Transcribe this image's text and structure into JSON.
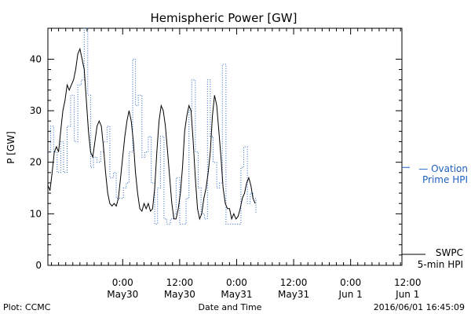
{
  "chart_data": {
    "type": "line",
    "title": "Hemispheric Power [GW]",
    "ylabel": "P [GW]",
    "xlabel": "Date and Time",
    "ylim": [
      0,
      46
    ],
    "xlim_hours": [
      -10.5,
      39.2
    ],
    "yticks": [
      0,
      10,
      20,
      30,
      40
    ],
    "xticks": [
      {
        "h": 0,
        "time": "0:00",
        "date": "May30"
      },
      {
        "h": 8,
        "time": "12:00",
        "date": "May30"
      },
      {
        "h": 16,
        "time": "0:00",
        "date": "May31"
      },
      {
        "h": 24,
        "time": "12:00",
        "date": "May31"
      },
      {
        "h": 32,
        "time": "0:00",
        "date": "Jun 1"
      },
      {
        "h": 40,
        "time": "12:00",
        "date": "Jun 1"
      }
    ],
    "colors": {
      "swpc": "#000000",
      "ovation": "#2060c0"
    },
    "series": [
      {
        "name": "Ovation Prime HPI",
        "legend_lines": [
          "— Ovation",
          "Prime HPI"
        ],
        "style": "dotted-step",
        "points": [
          [
            -10.5,
            22
          ],
          [
            -10.1,
            27
          ],
          [
            -9.7,
            22
          ],
          [
            -9.2,
            18
          ],
          [
            -8.7,
            24
          ],
          [
            -8.3,
            18
          ],
          [
            -7.8,
            27
          ],
          [
            -7.3,
            33
          ],
          [
            -6.8,
            24
          ],
          [
            -6.3,
            35
          ],
          [
            -5.8,
            36
          ],
          [
            -5.4,
            46
          ],
          [
            -4.9,
            33
          ],
          [
            -4.5,
            19
          ],
          [
            -4.1,
            21
          ],
          [
            -3.6,
            20
          ],
          [
            -3.1,
            22
          ],
          [
            -2.7,
            24
          ],
          [
            -2.2,
            27
          ],
          [
            -1.8,
            17
          ],
          [
            -1.3,
            18
          ],
          [
            -0.9,
            13
          ],
          [
            -0.4,
            13
          ],
          [
            0.1,
            15
          ],
          [
            0.5,
            16
          ],
          [
            0.9,
            22
          ],
          [
            1.4,
            40
          ],
          [
            1.8,
            31
          ],
          [
            2.2,
            33
          ],
          [
            2.7,
            21
          ],
          [
            3.1,
            22
          ],
          [
            3.6,
            25
          ],
          [
            4.0,
            16
          ],
          [
            4.5,
            8
          ],
          [
            4.9,
            15
          ],
          [
            5.3,
            25
          ],
          [
            5.8,
            9
          ],
          [
            6.2,
            8
          ],
          [
            6.7,
            9
          ],
          [
            7.1,
            10
          ],
          [
            7.5,
            17
          ],
          [
            8.0,
            8
          ],
          [
            8.4,
            8
          ],
          [
            8.9,
            13
          ],
          [
            9.3,
            30
          ],
          [
            9.7,
            36
          ],
          [
            10.2,
            22
          ],
          [
            10.6,
            15
          ],
          [
            11.0,
            10
          ],
          [
            11.5,
            9
          ],
          [
            11.9,
            36
          ],
          [
            12.3,
            25
          ],
          [
            12.7,
            20
          ],
          [
            13.2,
            15
          ],
          [
            13.6,
            16
          ],
          [
            14.0,
            39
          ],
          [
            14.5,
            8
          ],
          [
            14.9,
            8
          ],
          [
            15.3,
            8
          ],
          [
            15.7,
            8
          ],
          [
            16.2,
            8
          ],
          [
            16.6,
            19
          ],
          [
            17.0,
            23
          ],
          [
            17.5,
            12
          ],
          [
            17.9,
            14
          ],
          [
            18.3,
            13
          ],
          [
            18.7,
            10
          ]
        ]
      },
      {
        "name": "SWPC 5-min HPI",
        "legend_lines": [
          "SWPC",
          "5-min HPI"
        ],
        "style": "solid",
        "points": [
          [
            -10.5,
            15.5
          ],
          [
            -10.2,
            14.5
          ],
          [
            -9.9,
            18
          ],
          [
            -9.6,
            22
          ],
          [
            -9.3,
            23
          ],
          [
            -9.0,
            22
          ],
          [
            -8.7,
            26
          ],
          [
            -8.4,
            30
          ],
          [
            -8.1,
            32
          ],
          [
            -7.8,
            35
          ],
          [
            -7.5,
            34
          ],
          [
            -7.2,
            35
          ],
          [
            -6.9,
            36
          ],
          [
            -6.6,
            38
          ],
          [
            -6.3,
            41
          ],
          [
            -6.0,
            42
          ],
          [
            -5.7,
            40
          ],
          [
            -5.4,
            38
          ],
          [
            -5.1,
            32
          ],
          [
            -4.8,
            26
          ],
          [
            -4.5,
            22
          ],
          [
            -4.2,
            21
          ],
          [
            -3.9,
            24
          ],
          [
            -3.6,
            27
          ],
          [
            -3.3,
            28
          ],
          [
            -3.0,
            27
          ],
          [
            -2.7,
            23
          ],
          [
            -2.4,
            18
          ],
          [
            -2.1,
            14
          ],
          [
            -1.8,
            12
          ],
          [
            -1.5,
            11.5
          ],
          [
            -1.2,
            12
          ],
          [
            -0.9,
            11.5
          ],
          [
            -0.6,
            13
          ],
          [
            -0.3,
            17
          ],
          [
            0.0,
            21
          ],
          [
            0.3,
            25
          ],
          [
            0.6,
            28
          ],
          [
            0.9,
            30
          ],
          [
            1.2,
            28
          ],
          [
            1.5,
            24
          ],
          [
            1.8,
            18
          ],
          [
            2.1,
            14
          ],
          [
            2.4,
            11
          ],
          [
            2.7,
            10.5
          ],
          [
            3.0,
            12
          ],
          [
            3.3,
            11
          ],
          [
            3.6,
            12
          ],
          [
            3.9,
            10.5
          ],
          [
            4.2,
            11
          ],
          [
            4.5,
            15
          ],
          [
            4.8,
            22
          ],
          [
            5.1,
            28
          ],
          [
            5.4,
            31
          ],
          [
            5.7,
            30
          ],
          [
            6.0,
            27
          ],
          [
            6.3,
            22
          ],
          [
            6.6,
            17
          ],
          [
            6.9,
            12
          ],
          [
            7.2,
            9
          ],
          [
            7.5,
            9
          ],
          [
            7.8,
            11
          ],
          [
            8.1,
            14
          ],
          [
            8.4,
            19
          ],
          [
            8.7,
            26
          ],
          [
            9.0,
            29
          ],
          [
            9.3,
            31
          ],
          [
            9.6,
            30
          ],
          [
            9.9,
            24
          ],
          [
            10.2,
            17
          ],
          [
            10.5,
            11
          ],
          [
            10.8,
            9
          ],
          [
            11.1,
            10
          ],
          [
            11.4,
            13
          ],
          [
            11.7,
            15
          ],
          [
            12.0,
            18
          ],
          [
            12.3,
            22
          ],
          [
            12.6,
            29
          ],
          [
            12.9,
            33
          ],
          [
            13.2,
            31
          ],
          [
            13.5,
            26
          ],
          [
            13.8,
            21
          ],
          [
            14.1,
            15
          ],
          [
            14.4,
            12
          ],
          [
            14.7,
            11
          ],
          [
            15.0,
            11
          ],
          [
            15.3,
            9
          ],
          [
            15.6,
            10
          ],
          [
            15.9,
            9
          ],
          [
            16.2,
            9.5
          ],
          [
            16.5,
            11
          ],
          [
            16.8,
            13
          ],
          [
            17.1,
            14
          ],
          [
            17.4,
            16
          ],
          [
            17.7,
            17
          ],
          [
            18.0,
            15.5
          ],
          [
            18.3,
            13
          ],
          [
            18.6,
            12
          ]
        ]
      }
    ]
  },
  "footer": {
    "left": "Plot: CCMC",
    "center": "Date and Time",
    "right": "2016/06/01 16:45:09"
  }
}
